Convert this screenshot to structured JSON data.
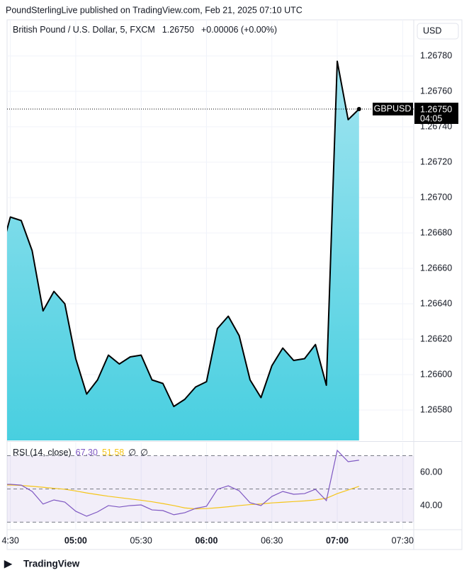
{
  "header": {
    "publisher": "PoundSterlingLive published on TradingView.com, Feb 21, 2025 07:10 UTC",
    "currency": "USD",
    "symbol": "GBPUSD",
    "countdown": "04:05",
    "last_label": "1.26750",
    "change": "+0.00006 (+0.00%)",
    "footer": "TradingView"
  },
  "chart_data": [
    {
      "type": "area",
      "title": "British Pound / U.S. Dollar, 5, FXCM",
      "x": [
        265,
        270,
        275,
        280,
        285,
        290,
        295,
        300,
        305,
        310,
        315,
        320,
        325,
        330,
        335,
        340,
        345,
        350,
        355,
        360,
        365,
        370,
        375,
        380,
        385,
        390,
        395,
        400,
        405,
        410,
        415,
        420,
        425,
        430
      ],
      "values": [
        1.26666,
        1.26689,
        1.26687,
        1.2667,
        1.26636,
        1.26647,
        1.2664,
        1.26609,
        1.26589,
        1.26597,
        1.26611,
        1.26606,
        1.2661,
        1.26611,
        1.26597,
        1.26595,
        1.26582,
        1.26586,
        1.26593,
        1.26596,
        1.26626,
        1.26633,
        1.26622,
        1.26597,
        1.26587,
        1.26605,
        1.26615,
        1.26608,
        1.26609,
        1.26617,
        1.26594,
        1.26777,
        1.26744,
        1.2675
      ],
      "color": "#000000",
      "fill_colors": [
        "#a0e4f0",
        "#48cfe0"
      ],
      "xlim": [
        268.5,
        455.1
      ],
      "xticks": [
        {
          "value": 270,
          "label": "4:30"
        },
        {
          "value": 300,
          "label": "05:00"
        },
        {
          "value": 330,
          "label": "05:30"
        },
        {
          "value": 360,
          "label": "06:00"
        },
        {
          "value": 390,
          "label": "06:30"
        },
        {
          "value": 420,
          "label": "07:00"
        },
        {
          "value": 450,
          "label": "07:30"
        }
      ],
      "ylim": [
        1.265628,
        1.268004
      ],
      "yticks": [
        {
          "value": 1.2658,
          "label": "1.26580"
        },
        {
          "value": 1.266,
          "label": "1.26600"
        },
        {
          "value": 1.2662,
          "label": "1.26620"
        },
        {
          "value": 1.2664,
          "label": "1.26640"
        },
        {
          "value": 1.2666,
          "label": "1.26660"
        },
        {
          "value": 1.2668,
          "label": "1.26680"
        },
        {
          "value": 1.267,
          "label": "1.26700"
        },
        {
          "value": 1.2672,
          "label": "1.26720"
        },
        {
          "value": 1.2674,
          "label": "1.26740"
        },
        {
          "value": 1.2676,
          "label": "1.26760"
        },
        {
          "value": 1.2678,
          "label": "1.26780"
        }
      ],
      "grid": true
    },
    {
      "type": "line",
      "title": "RSI (14, close)",
      "series": [
        {
          "color": "#7e57c2",
          "values": [
            52.8,
            52.8,
            52.3,
            48.5,
            40.9,
            43.4,
            42.1,
            36.6,
            33.6,
            36.2,
            40,
            39.1,
            40,
            40.4,
            37.4,
            37,
            34.5,
            35.7,
            38.3,
            39.6,
            49.8,
            51.9,
            48.9,
            41.7,
            40,
            45.5,
            48.5,
            46.8,
            47.2,
            49.8,
            43,
            73.2,
            66.4,
            67.3
          ],
          "last_label": "67.30"
        },
        {
          "color": "#f5c518",
          "values": [
            52.4,
            52.4,
            52.1,
            51.6,
            51.0,
            50.4,
            49.8,
            48.8,
            47.6,
            46.6,
            45.6,
            44.8,
            44.0,
            43.2,
            42.3,
            41.2,
            40.0,
            38.6,
            38.0,
            38.2,
            38.7,
            39.3,
            40.0,
            40.6,
            41.0,
            41.6,
            42.0,
            42.4,
            42.8,
            43.4,
            44.4,
            47.2,
            49.4,
            51.58
          ],
          "last_label": "51.58"
        }
      ],
      "symbols": [
        "∅",
        "∅"
      ],
      "ylim": [
        25.5,
        77.9
      ],
      "yticks": [
        {
          "value": 40,
          "label": "40.00"
        },
        {
          "value": 60,
          "label": "60.00"
        }
      ],
      "levels": [
        30,
        50,
        70
      ],
      "band_color": "#7e57c2"
    }
  ]
}
